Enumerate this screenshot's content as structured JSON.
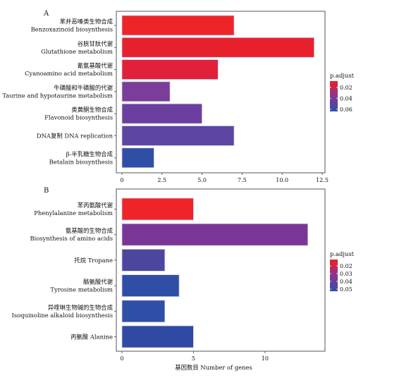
{
  "chart_data": [
    {
      "type": "bar",
      "orientation": "horizontal",
      "panel_label": "A",
      "categories": [
        [
          "苯并恶嗪类生物合成",
          "Benzoxazinoid biosynthesis"
        ],
        [
          "谷胱甘肽代谢",
          "Glutathione metabolism"
        ],
        [
          "氰氨基酸代谢",
          "Cyanoamino acid metabolism"
        ],
        [
          "牛磺酸和牛磺酸的代谢",
          "Taurine and hypotaurine metabolism"
        ],
        [
          "类黄酮生物合成",
          "Flavonoid biosynthesis"
        ],
        [
          "DNA复制 DNA replication"
        ],
        [
          "β-半乳糖生物合成",
          "Betalain biosynthesis"
        ]
      ],
      "values": [
        7,
        12,
        6,
        3,
        5,
        7,
        2
      ],
      "bar_colors": [
        "#ee2428",
        "#e8202d",
        "#e1203a",
        "#7a3d9a",
        "#6b3f9f",
        "#5c46a2",
        "#2f4fa6"
      ],
      "xlim": [
        0,
        12.5
      ],
      "xticks": [
        "0",
        "2.5",
        "5.0",
        "7.5",
        "10.0",
        "12.5"
      ],
      "xtick_values": [
        0,
        2.5,
        5,
        7.5,
        10,
        12.5
      ],
      "xlabel": "",
      "legend": {
        "title": "p.adjust",
        "ticks": [
          "0.02",
          "0.04",
          "0.06"
        ],
        "gradient": [
          "#f01f1f",
          "#8a3295",
          "#2c51a8"
        ]
      }
    },
    {
      "type": "bar",
      "orientation": "horizontal",
      "panel_label": "B",
      "categories": [
        [
          "苯丙氨酸代谢",
          "Phenylalanine metabolism"
        ],
        [
          "氨基酸的生物合成",
          "Biosynthesis of amino acids"
        ],
        [
          "托烷 Tropane"
        ],
        [
          "酪氨酸代谢",
          "Tyrosine metabolism"
        ],
        [
          "异喹啉生物碱的生物合成",
          "Isoquinoline alkaloid biosynthesis"
        ],
        [
          "丙氨酸 Alanine"
        ]
      ],
      "values": [
        5,
        13,
        3,
        4,
        3,
        5
      ],
      "bar_colors": [
        "#ee2428",
        "#7b3598",
        "#4b479f",
        "#2f4fa6",
        "#2f4fa6",
        "#3049a4"
      ],
      "xlim": [
        0,
        14
      ],
      "xticks": [
        "0",
        "5",
        "10"
      ],
      "xtick_values": [
        0,
        5,
        10
      ],
      "xlabel": "基因数目 Number of genes",
      "legend": {
        "title": "p.adjust",
        "ticks": [
          "0.02",
          "0.03",
          "0.04",
          "0.05"
        ],
        "gradient": [
          "#f01f1f",
          "#8a3295",
          "#2c51a8"
        ]
      }
    }
  ]
}
